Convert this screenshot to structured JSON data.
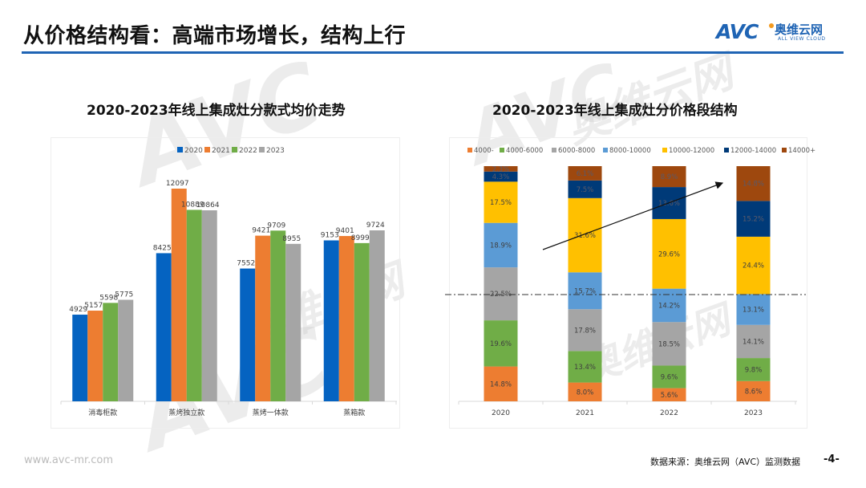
{
  "header": {
    "title": "从价格结构看：高端市场增长，结构上行",
    "logo": {
      "brand": "AVC",
      "cn": "奥维云网",
      "en": "ALL VIEW CLOUD"
    }
  },
  "footer": {
    "url": "www.avc-mr.com",
    "source": "数据来源：奥维云网（AVC）监测数据",
    "page": "-4-"
  },
  "watermark": {
    "brand": "AVC",
    "cn": "奥维云网",
    "en": "ALL VIEW CLOUD"
  },
  "chart_data": [
    {
      "type": "bar",
      "title": "2020-2023年线上集成灶分款式均价走势",
      "xlabel": "",
      "ylabel": "",
      "ylim": [
        0,
        12800
      ],
      "grid": false,
      "legend": "top-center",
      "categories": [
        "消毒柜款",
        "蒸烤独立款",
        "蒸烤一体款",
        "蒸箱款"
      ],
      "series": [
        {
          "name": "2020",
          "color": "#0563c1",
          "values": [
            4929,
            8425,
            7552,
            9153
          ]
        },
        {
          "name": "2021",
          "color": "#ed7d31",
          "values": [
            5157,
            12097,
            9421,
            9401
          ]
        },
        {
          "name": "2022",
          "color": "#70ad47",
          "values": [
            5598,
            10889,
            9709,
            8999
          ]
        },
        {
          "name": "2023",
          "color": "#a5a5a5",
          "values": [
            5775,
            10864,
            8955,
            9724
          ]
        }
      ]
    },
    {
      "type": "bar",
      "stacked": true,
      "title": "2020-2023年线上集成灶分价格段结构",
      "xlabel": "",
      "ylabel": "",
      "ylim": [
        0,
        100
      ],
      "grid": false,
      "legend": "top-center",
      "categories": [
        "2020",
        "2021",
        "2022",
        "2023"
      ],
      "series": [
        {
          "name": "4000-",
          "color": "#ed7d31",
          "values": [
            14.8,
            8.0,
            5.6,
            8.6
          ]
        },
        {
          "name": "4000-6000",
          "color": "#70ad47",
          "values": [
            19.6,
            13.4,
            9.6,
            9.8
          ]
        },
        {
          "name": "6000-8000",
          "color": "#a5a5a5",
          "values": [
            22.5,
            17.8,
            18.5,
            14.1
          ]
        },
        {
          "name": "8000-10000",
          "color": "#5b9bd5",
          "values": [
            18.9,
            15.7,
            14.2,
            13.1
          ]
        },
        {
          "name": "10000-12000",
          "color": "#ffc000",
          "values": [
            17.5,
            31.6,
            29.6,
            24.4
          ]
        },
        {
          "name": "12000-14000",
          "color": "#003a78",
          "values": [
            4.3,
            7.5,
            13.6,
            15.2
          ]
        },
        {
          "name": "14000+",
          "color": "#9e480e",
          "values": [
            2.3,
            6.1,
            8.9,
            14.8
          ]
        }
      ],
      "annotations": [
        "upward trend arrow from 2020 toward 2023 high-end segments",
        "dash-dot reference line at 10000 price boundary"
      ]
    }
  ]
}
